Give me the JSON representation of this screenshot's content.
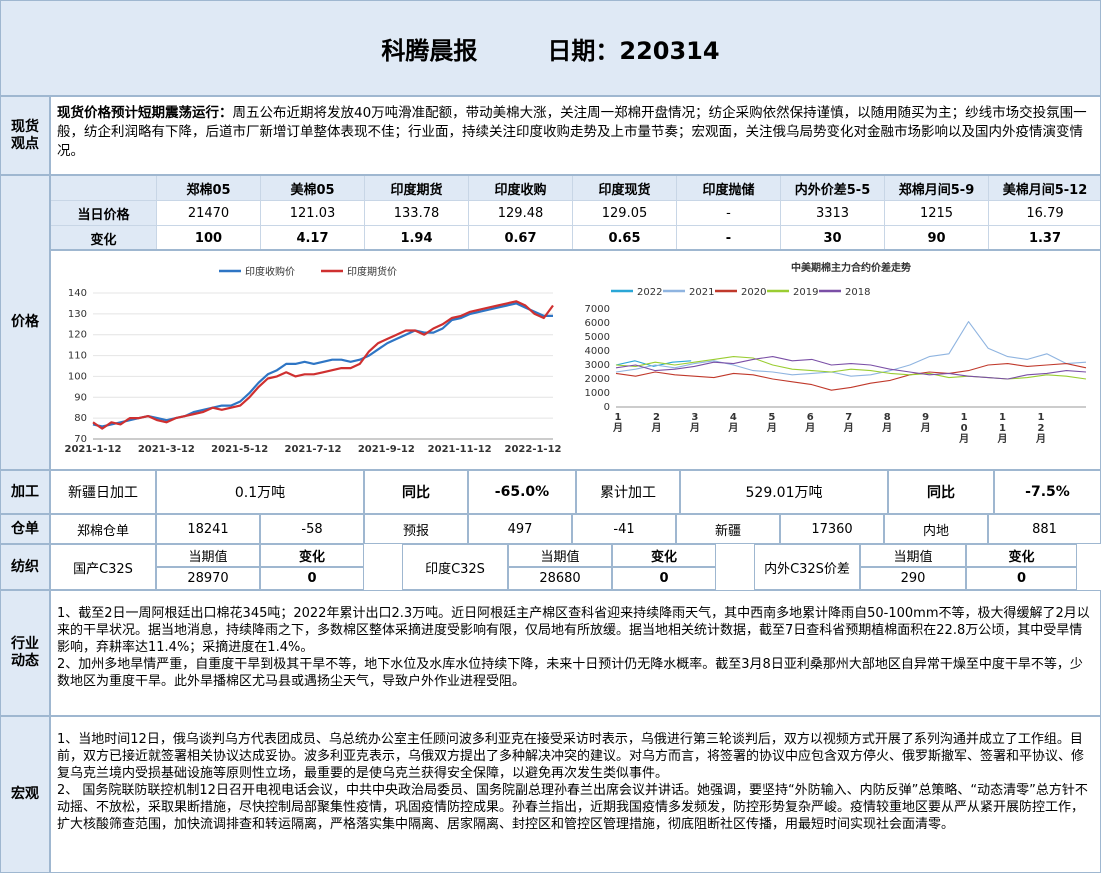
{
  "header": {
    "title": "科腾晨报",
    "date_label": "日期：220314"
  },
  "spot": {
    "label": "现货观点",
    "headline": "现货价格预计短期震荡运行：",
    "body": "周五公布近期将发放40万吨滑准配额，带动美棉大涨，关注周一郑棉开盘情况；纺企采购依然保持谨慎，以随用随买为主；纱线市场交投氛围一般，纺企利润略有下降，后道市厂新增订单整体表现不佳；行业面，持续关注印度收购走势及上市量节奏；宏观面，关注俄乌局势变化对金融市场影响以及国内外疫情演变情况。"
  },
  "price": {
    "label": "价格",
    "columns": [
      "",
      "郑棉05",
      "美棉05",
      "印度期货",
      "印度收购",
      "印度现货",
      "印度抛储",
      "内外价差5-5",
      "郑棉月间5-9",
      "美棉月间5-12"
    ],
    "rows": [
      {
        "name": "当日价格",
        "values": [
          "21470",
          "121.03",
          "133.78",
          "129.48",
          "129.05",
          "-",
          "3313",
          "1215",
          "16.79"
        ]
      },
      {
        "name": "变化",
        "values": [
          "100",
          "4.17",
          "1.94",
          "0.67",
          "0.65",
          "-",
          "30",
          "90",
          "1.37"
        ]
      }
    ]
  },
  "chart_data": [
    {
      "type": "line",
      "title": "",
      "legend_position": "top",
      "x_ticks": [
        "2021-1-12",
        "2021-3-12",
        "2021-5-12",
        "2021-7-12",
        "2021-9-12",
        "2021-11-12",
        "2022-1-12"
      ],
      "ylim": [
        70,
        140
      ],
      "y_ticks": [
        70,
        80,
        90,
        100,
        110,
        120,
        130,
        140
      ],
      "series": [
        {
          "name": "印度收购价",
          "color": "#2e75c4",
          "values": [
            77,
            76,
            77,
            78,
            79,
            80,
            81,
            80,
            79,
            80,
            81,
            83,
            84,
            85,
            86,
            86,
            88,
            92,
            97,
            101,
            103,
            106,
            106,
            107,
            106,
            107,
            108,
            108,
            107,
            108,
            110,
            113,
            116,
            118,
            120,
            122,
            121,
            121,
            123,
            127,
            128,
            130,
            131,
            132,
            133,
            134,
            135,
            133,
            131,
            129,
            129
          ]
        },
        {
          "name": "印度期货价",
          "color": "#cf3030",
          "values": [
            78,
            75,
            78,
            77,
            80,
            80,
            81,
            79,
            78,
            80,
            81,
            82,
            83,
            85,
            84,
            85,
            86,
            90,
            95,
            99,
            100,
            102,
            100,
            101,
            101,
            102,
            103,
            104,
            104,
            106,
            112,
            116,
            118,
            120,
            122,
            122,
            120,
            123,
            125,
            128,
            129,
            131,
            132,
            133,
            134,
            135,
            136,
            134,
            130,
            128,
            134
          ]
        }
      ]
    },
    {
      "type": "line",
      "title": "中美期棉主力合约价差走势",
      "legend_position": "top",
      "x_ticks": [
        "1\n月",
        "2\n月",
        "3\n月",
        "4\n月",
        "5\n月",
        "6\n月",
        "7\n月",
        "8\n月",
        "9\n月",
        "1\n0\n月",
        "1\n1\n月",
        "1\n2\n月"
      ],
      "ylim": [
        0,
        7000
      ],
      "y_ticks": [
        0,
        1000,
        2000,
        3000,
        4000,
        5000,
        6000,
        7000
      ],
      "series": [
        {
          "name": "2022",
          "color": "#2aa6d6",
          "values": [
            3000,
            3300,
            2900,
            3200,
            3300
          ]
        },
        {
          "name": "2021",
          "color": "#8fb4e0",
          "values": [
            2500,
            2700,
            3000,
            2800,
            3100,
            3300,
            3000,
            2600,
            2500,
            2300,
            2400,
            2500,
            2200,
            2300,
            2600,
            3000,
            3600,
            3800,
            6100,
            4200,
            3600,
            3400,
            3800,
            3100,
            3200
          ]
        },
        {
          "name": "2020",
          "color": "#c0392b",
          "values": [
            2400,
            2200,
            2500,
            2300,
            2200,
            2100,
            2400,
            2300,
            2000,
            1800,
            1600,
            1200,
            1400,
            1700,
            1900,
            2300,
            2500,
            2400,
            2600,
            3000,
            3100,
            2900,
            3000,
            3100,
            2800
          ]
        },
        {
          "name": "2019",
          "color": "#9acd32",
          "values": [
            3000,
            2900,
            3200,
            3000,
            3200,
            3400,
            3600,
            3500,
            3000,
            2700,
            2600,
            2500,
            2700,
            2600,
            2400,
            2300,
            2400,
            2100,
            2200,
            2100,
            2000,
            2100,
            2300,
            2200,
            2000
          ]
        },
        {
          "name": "2018",
          "color": "#7a4fa6",
          "values": [
            2800,
            3000,
            2600,
            2700,
            2900,
            3200,
            3100,
            3400,
            3600,
            3300,
            3400,
            3000,
            3100,
            3000,
            2700,
            2500,
            2300,
            2400,
            2200,
            2100,
            2000,
            2300,
            2400,
            2600,
            2500
          ]
        }
      ]
    }
  ],
  "processing": {
    "label": "加工",
    "xinjiang_label": "新疆日加工",
    "xinjiang_value": "0.1万吨",
    "yoy_label": "同比",
    "yoy_value": "-65.0%",
    "cum_label": "累计加工",
    "cum_value": "529.01万吨",
    "yoy2_label": "同比",
    "yoy2_value": "-7.5%"
  },
  "warehouse": {
    "label": "仓单",
    "cells": [
      "郑棉仓单",
      "18241",
      "-58",
      "预报",
      "497",
      "-41",
      "新疆",
      "17360",
      "内地",
      "881"
    ]
  },
  "spinning": {
    "label": "纺织",
    "groups": [
      {
        "name": "国产C32S",
        "cur_label": "当期值",
        "chg_label": "变化",
        "cur": "28970",
        "chg": "0"
      },
      {
        "name": "印度C32S",
        "cur_label": "当期值",
        "chg_label": "变化",
        "cur": "28680",
        "chg": "0"
      },
      {
        "name": "内外C32S价差",
        "cur_label": "当期值",
        "chg_label": "变化",
        "cur": "290",
        "chg": "0"
      }
    ]
  },
  "industry": {
    "label": "行业动态",
    "p1": "1、截至2日一周阿根廷出口棉花345吨；2022年累计出口2.3万吨。近日阿根廷主产棉区查科省迎来持续降雨天气，其中西南多地累计降雨自50-100mm不等，极大得缓解了2月以来的干旱状况。据当地消息，持续降雨之下，多数棉区整体采摘进度受影响有限，仅局地有所放缓。据当地相关统计数据，截至7日查科省预期植棉面积在22.8万公顷，其中受旱情影响，弃耕率达11.4%；采摘进度在1.4%。",
    "p2": "2、加州多地旱情严重，自重度干旱到极其干旱不等，地下水位及水库水位持续下降，未来十日预计仍无降水概率。截至3月8日亚利桑那州大部地区自异常干燥至中度干旱不等，少数地区为重度干旱。此外旱播棉区尤马县或遇扬尘天气，导致户外作业进程受阻。"
  },
  "macro": {
    "label": "宏观",
    "p1": "1、当地时间12日，俄乌谈判乌方代表团成员、乌总统办公室主任顾问波多利亚克在接受采访时表示，乌俄进行第三轮谈判后，双方以视频方式开展了系列沟通并成立了工作组。目前，双方已接近就签署相关协议达成妥协。波多利亚克表示，乌俄双方提出了多种解决冲突的建议。对乌方而言，将签署的协议中应包含双方停火、俄罗斯撤军、签署和平协议、修复乌克兰境内受损基础设施等原则性立场，最重要的是使乌克兰获得安全保障，以避免再次发生类似事件。",
    "p2": "2、  国务院联防联控机制12日召开电视电话会议，中共中央政治局委员、国务院副总理孙春兰出席会议并讲话。她强调，要坚持“外防输入、内防反弹”总策略、“动态清零”总方针不动摇、不放松，采取果断措施，尽快控制局部聚集性疫情，巩固疫情防控成果。孙春兰指出，近期我国疫情多发频发，防控形势复杂严峻。疫情较重地区要从严从紧开展防控工作，扩大核酸筛查范围，加快流调排查和转运隔离，严格落实集中隔离、居家隔离、封控区和管控区管理措施，彻底阻断社区传播，用最短时间实现社会面清零。"
  }
}
